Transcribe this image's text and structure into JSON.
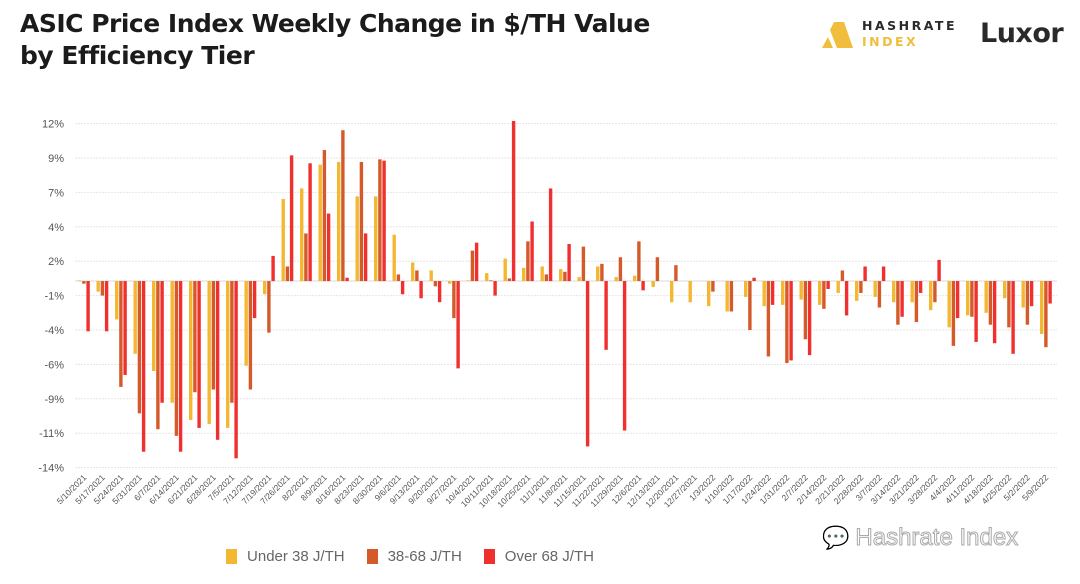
{
  "title_line1": "ASIC Price Index Weekly Change in $/TH Value",
  "title_line2": "by Efficiency Tier",
  "logos": {
    "hashrate_line1": "HASHRATE",
    "hashrate_line2": "INDEX",
    "luxor": "Luxor"
  },
  "watermark": "Hashrate Index",
  "colors": {
    "under38": "#f4b731",
    "mid": "#d45a2a",
    "over68": "#f0302f",
    "grid": "#e6e6e6"
  },
  "chart_data": {
    "type": "bar",
    "title": "ASIC Price Index Weekly Change in $/TH Value by Efficiency Tier",
    "xlabel": "",
    "ylabel": "",
    "ylim": [
      -14.1,
      11.9
    ],
    "yticks": [
      11.9,
      9.3,
      6.7,
      4.1,
      1.5,
      -1.1,
      -3.7,
      -6.3,
      -8.9,
      -11.5,
      -14.1
    ],
    "ytick_labels": [
      "12%",
      "9%",
      "7%",
      "4%",
      "2%",
      "-1%",
      "-4%",
      "-6%",
      "-9%",
      "-11%",
      "-14%"
    ],
    "grid": true,
    "legend": "bottom",
    "categories": [
      "5/10/2021",
      "5/17/2021",
      "5/24/2021",
      "5/31/2021",
      "6/7/2021",
      "6/14/2021",
      "6/21/2021",
      "6/28/2021",
      "7/5/2021",
      "7/12/2021",
      "7/19/2021",
      "7/26/2021",
      "8/2/2021",
      "8/9/2021",
      "8/16/2021",
      "8/23/2021",
      "8/30/2021",
      "9/6/2021",
      "9/13/2021",
      "9/20/2021",
      "9/27/2021",
      "10/4/2021",
      "10/11/2021",
      "10/18/2021",
      "10/25/2021",
      "11/1/2021",
      "11/8/2021",
      "11/15/2021",
      "11/22/2021",
      "11/29/2021",
      "12/6/2021",
      "12/13/2021",
      "12/20/2021",
      "12/27/2021",
      "1/3/2022",
      "1/10/2022",
      "1/17/2022",
      "1/24/2022",
      "1/31/2022",
      "2/7/2022",
      "2/14/2022",
      "2/21/2022",
      "2/28/2022",
      "3/7/2022",
      "3/14/2022",
      "3/21/2022",
      "3/28/2022",
      "4/4/2022",
      "4/11/2022",
      "4/18/2022",
      "4/25/2022",
      "5/2/2022",
      "5/9/2022"
    ],
    "series": [
      {
        "name": "Under 38 J/TH",
        "values": [
          0.05,
          -0.8,
          -2.9,
          -5.5,
          -6.8,
          -9.2,
          -10.5,
          -10.8,
          -11.1,
          -6.4,
          -1.0,
          6.2,
          7.0,
          8.8,
          9.0,
          6.4,
          6.4,
          3.5,
          1.4,
          0.8,
          -0.2,
          0.05,
          0.6,
          1.7,
          1.0,
          1.1,
          0.9,
          0.3,
          1.1,
          0.3,
          0.4,
          -0.45,
          -1.6,
          -1.6,
          -1.9,
          -2.3,
          -1.2,
          -1.9,
          -1.8,
          -1.4,
          -1.8,
          -0.9,
          -1.5,
          -1.2,
          -1.6,
          -1.6,
          -2.2,
          -3.5,
          -2.6,
          -2.4,
          -1.3,
          -2.0,
          -4.0
        ]
      },
      {
        "name": "38-68 J/TH",
        "values": [
          -0.2,
          -1.1,
          -8.0,
          -10.0,
          -11.2,
          -11.7,
          -8.4,
          -8.2,
          -9.2,
          -8.2,
          -3.9,
          1.1,
          3.6,
          9.9,
          11.4,
          9.0,
          9.2,
          0.5,
          0.8,
          -0.4,
          -2.8,
          2.3,
          0.05,
          0.2,
          3.0,
          0.5,
          0.7,
          2.6,
          1.3,
          1.8,
          3.0,
          1.8,
          1.2,
          0,
          -0.8,
          -2.3,
          -3.7,
          -5.7,
          -6.2,
          -4.4,
          -2.1,
          0.8,
          -0.9,
          -2.0,
          -3.3,
          -3.1,
          -1.6,
          -4.9,
          -2.7,
          -3.3,
          -3.5,
          -3.3,
          -5.0
        ]
      },
      {
        "name": "Over 68 J/TH",
        "values": [
          -3.8,
          -3.8,
          -7.1,
          -12.9,
          -9.2,
          -12.9,
          -11.1,
          -12.0,
          -13.4,
          -2.8,
          1.9,
          9.5,
          8.9,
          5.1,
          0.25,
          3.6,
          9.1,
          -1.0,
          -1.3,
          -1.6,
          -6.6,
          2.9,
          -1.1,
          12.1,
          4.5,
          7.0,
          2.8,
          -12.5,
          -5.2,
          -11.3,
          -0.7,
          0,
          0,
          0,
          0,
          0,
          0.25,
          -1.8,
          -6.0,
          -5.6,
          -0.6,
          -2.6,
          1.1,
          1.1,
          -2.7,
          -0.9,
          1.6,
          -2.8,
          -4.6,
          -4.7,
          -5.5,
          -1.9,
          -1.7
        ]
      }
    ]
  }
}
